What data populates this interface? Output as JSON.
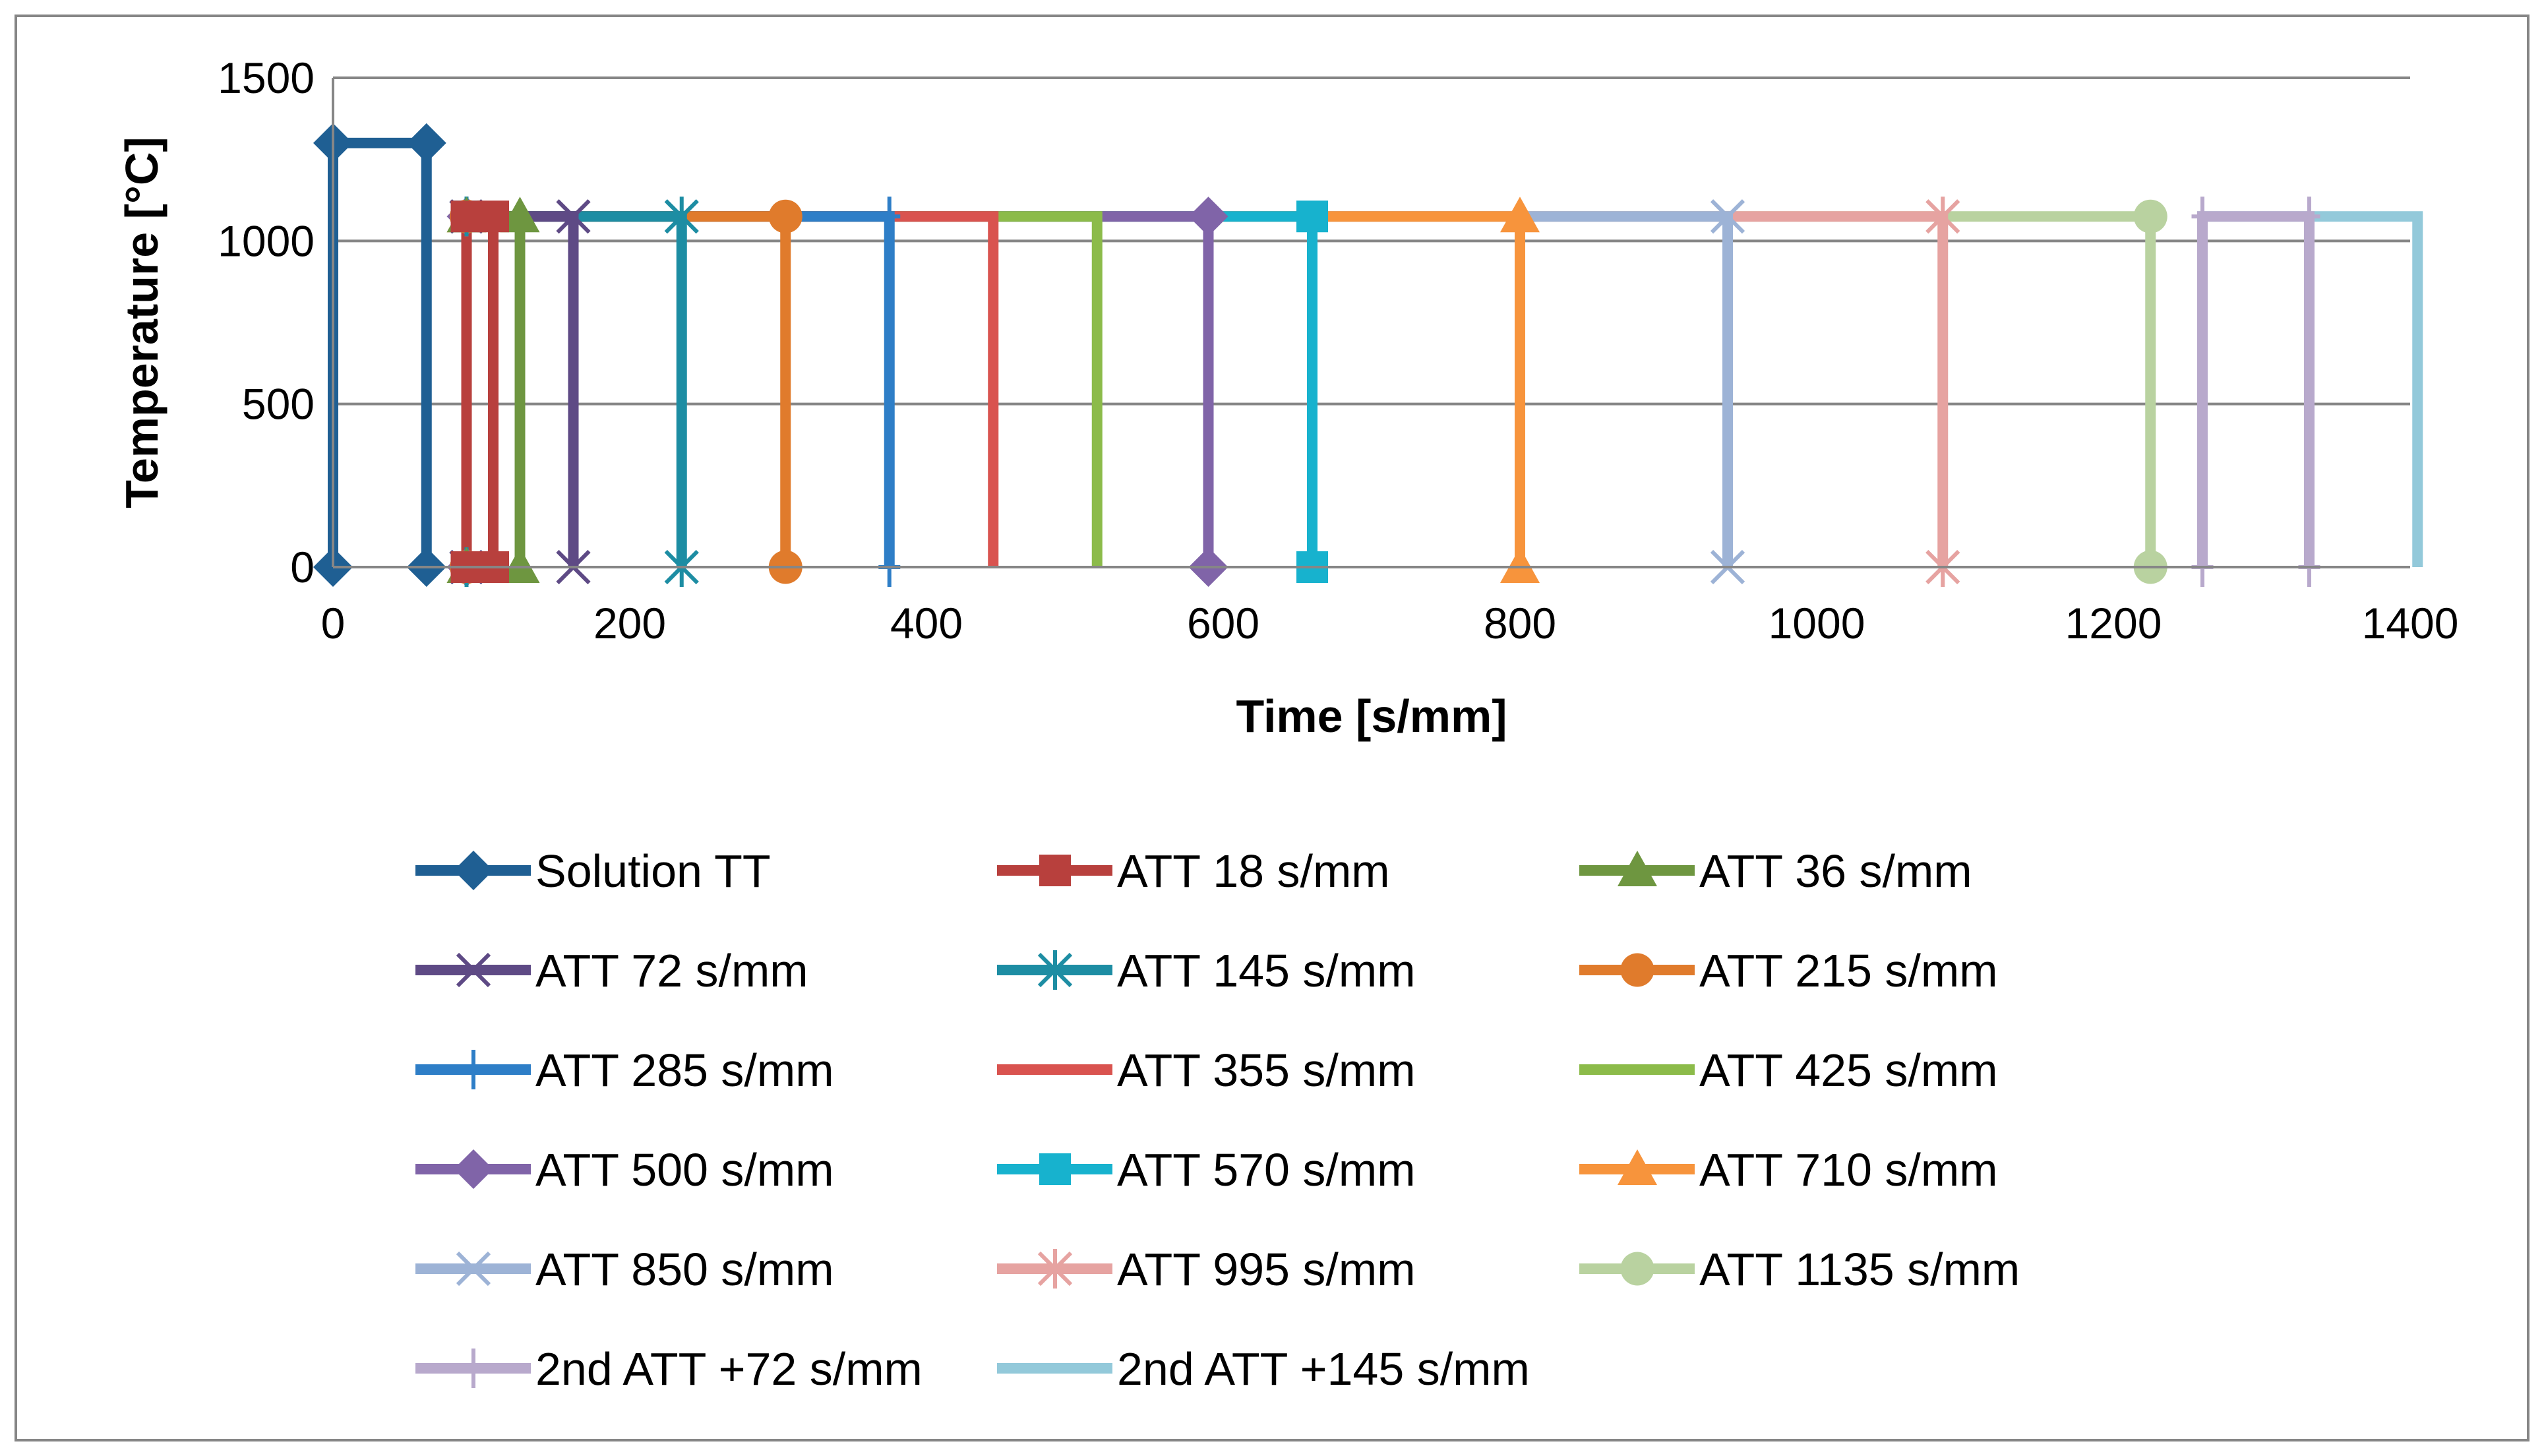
{
  "chart_data": {
    "type": "line",
    "title": "",
    "xlabel": "Time [s/mm]",
    "ylabel": "Temperature [°C]",
    "xlim": [
      0,
      1400
    ],
    "ylim": [
      0,
      1500
    ],
    "xticks": [
      0,
      200,
      400,
      600,
      800,
      1000,
      1200,
      1400
    ],
    "yticks": [
      0,
      500,
      1000,
      1500
    ],
    "grid": true,
    "legend_position": "bottom",
    "series": [
      {
        "name": "Solution TT",
        "color": "#1F5F93",
        "marker": "diamond",
        "points": [
          [
            0,
            0
          ],
          [
            0,
            1300
          ],
          [
            63,
            1300
          ],
          [
            63,
            0
          ]
        ]
      },
      {
        "name": "ATT 18 s/mm",
        "color": "#B8403D",
        "marker": "square",
        "points": [
          [
            90,
            0
          ],
          [
            90,
            1075
          ],
          [
            108,
            1075
          ],
          [
            108,
            0
          ]
        ]
      },
      {
        "name": "ATT 36 s/mm",
        "color": "#6E9640",
        "marker": "triangle",
        "points": [
          [
            90,
            0
          ],
          [
            90,
            1075
          ],
          [
            126,
            1075
          ],
          [
            126,
            0
          ]
        ]
      },
      {
        "name": "ATT 72 s/mm",
        "color": "#5E4A85",
        "marker": "x",
        "points": [
          [
            90,
            0
          ],
          [
            90,
            1075
          ],
          [
            162,
            1075
          ],
          [
            162,
            0
          ]
        ]
      },
      {
        "name": "ATT 145 s/mm",
        "color": "#1D8DA3",
        "marker": "star",
        "points": [
          [
            90,
            0
          ],
          [
            90,
            1075
          ],
          [
            235,
            1075
          ],
          [
            235,
            0
          ]
        ]
      },
      {
        "name": "ATT 215 s/mm",
        "color": "#E07B2C",
        "marker": "circle",
        "points": [
          [
            90,
            0
          ],
          [
            90,
            1075
          ],
          [
            305,
            1075
          ],
          [
            305,
            0
          ]
        ]
      },
      {
        "name": "ATT 285 s/mm",
        "color": "#2E7EC7",
        "marker": "plus",
        "points": [
          [
            90,
            0
          ],
          [
            90,
            1075
          ],
          [
            375,
            1075
          ],
          [
            375,
            0
          ]
        ]
      },
      {
        "name": "ATT 355 s/mm",
        "color": "#D9534F",
        "marker": "none",
        "points": [
          [
            90,
            0
          ],
          [
            90,
            1075
          ],
          [
            445,
            1075
          ],
          [
            445,
            0
          ]
        ]
      },
      {
        "name": "ATT 425 s/mm",
        "color": "#8CBB4A",
        "marker": "none",
        "points": [
          [
            90,
            0
          ],
          [
            90,
            1075
          ],
          [
            515,
            1075
          ],
          [
            515,
            0
          ]
        ]
      },
      {
        "name": "ATT 500 s/mm",
        "color": "#8064A8",
        "marker": "diamond",
        "points": [
          [
            90,
            0
          ],
          [
            90,
            1075
          ],
          [
            590,
            1075
          ],
          [
            590,
            0
          ]
        ]
      },
      {
        "name": "ATT 570 s/mm",
        "color": "#17B2CE",
        "marker": "square",
        "points": [
          [
            90,
            0
          ],
          [
            90,
            1075
          ],
          [
            660,
            1075
          ],
          [
            660,
            0
          ]
        ]
      },
      {
        "name": "ATT 710 s/mm",
        "color": "#F7943C",
        "marker": "triangle",
        "points": [
          [
            90,
            0
          ],
          [
            90,
            1075
          ],
          [
            800,
            1075
          ],
          [
            800,
            0
          ]
        ]
      },
      {
        "name": "ATT 850 s/mm",
        "color": "#9DB3D6",
        "marker": "x",
        "points": [
          [
            90,
            0
          ],
          [
            90,
            1075
          ],
          [
            940,
            1075
          ],
          [
            940,
            0
          ]
        ]
      },
      {
        "name": "ATT 995 s/mm",
        "color": "#E6A3A1",
        "marker": "star",
        "points": [
          [
            90,
            0
          ],
          [
            90,
            1075
          ],
          [
            1085,
            1075
          ],
          [
            1085,
            0
          ]
        ]
      },
      {
        "name": "ATT 1135 s/mm",
        "color": "#B9D2A0",
        "marker": "circle",
        "points": [
          [
            90,
            0
          ],
          [
            90,
            1075
          ],
          [
            1225,
            1075
          ],
          [
            1225,
            0
          ]
        ]
      },
      {
        "name": "2nd ATT +72 s/mm",
        "color": "#B8A9CC",
        "marker": "plus",
        "points": [
          [
            1260,
            0
          ],
          [
            1260,
            1075
          ],
          [
            1332,
            1075
          ],
          [
            1332,
            0
          ]
        ]
      },
      {
        "name": "2nd ATT +145 s/mm",
        "color": "#93C9DA",
        "marker": "none",
        "points": [
          [
            1260,
            0
          ],
          [
            1260,
            1075
          ],
          [
            1405,
            1075
          ],
          [
            1405,
            0
          ]
        ]
      }
    ]
  }
}
